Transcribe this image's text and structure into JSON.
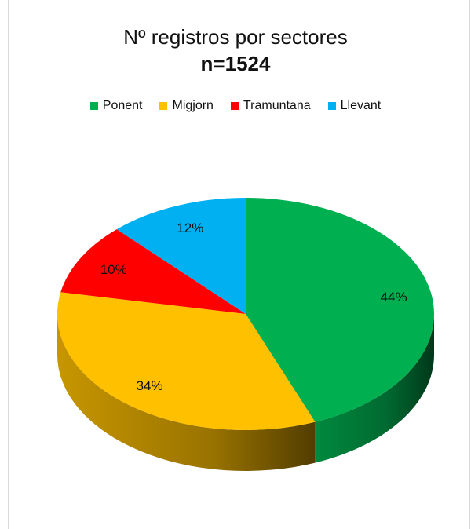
{
  "chart_data": {
    "type": "pie",
    "title": "Nº registros por sectores",
    "subtitle": "n=1524",
    "categories": [
      "Ponent",
      "Migjorn",
      "Tramuntana",
      "Llevant"
    ],
    "values": [
      44,
      34,
      10,
      12
    ],
    "labels": [
      "44%",
      "34%",
      "10%",
      "12%"
    ],
    "colors": [
      "#00b050",
      "#ffc000",
      "#ff0000",
      "#00b0f0"
    ],
    "legend_position": "top"
  }
}
